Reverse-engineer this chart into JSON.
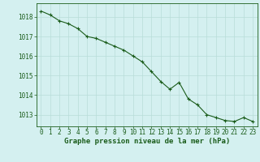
{
  "x": [
    0,
    1,
    2,
    3,
    4,
    5,
    6,
    7,
    8,
    9,
    10,
    11,
    12,
    13,
    14,
    15,
    16,
    17,
    18,
    19,
    20,
    21,
    22,
    23
  ],
  "y": [
    1018.3,
    1018.1,
    1017.8,
    1017.65,
    1017.4,
    1017.0,
    1016.9,
    1016.7,
    1016.5,
    1016.3,
    1016.0,
    1015.7,
    1015.2,
    1014.7,
    1014.3,
    1014.65,
    1013.8,
    1013.5,
    1013.0,
    1012.85,
    1012.7,
    1012.65,
    1012.85,
    1012.65
  ],
  "line_color": "#1a5c1a",
  "marker": "+",
  "marker_color": "#1a5c1a",
  "bg_color": "#d4f0f0",
  "grid_color": "#b8ddd8",
  "xlabel": "Graphe pression niveau de la mer (hPa)",
  "xlabel_color": "#1a5c1a",
  "tick_color": "#1a5c1a",
  "ylim": [
    1012.4,
    1018.7
  ],
  "yticks": [
    1013,
    1014,
    1015,
    1016,
    1017,
    1018
  ],
  "xlim": [
    -0.5,
    23.5
  ],
  "xtick_labels": [
    "0",
    "1",
    "2",
    "3",
    "4",
    "5",
    "6",
    "7",
    "8",
    "9",
    "10",
    "11",
    "12",
    "13",
    "14",
    "15",
    "16",
    "17",
    "18",
    "19",
    "20",
    "21",
    "22",
    "23"
  ],
  "xlabel_fontsize": 6.5,
  "tick_fontsize": 5.5,
  "linewidth": 0.8,
  "markersize": 3.5
}
